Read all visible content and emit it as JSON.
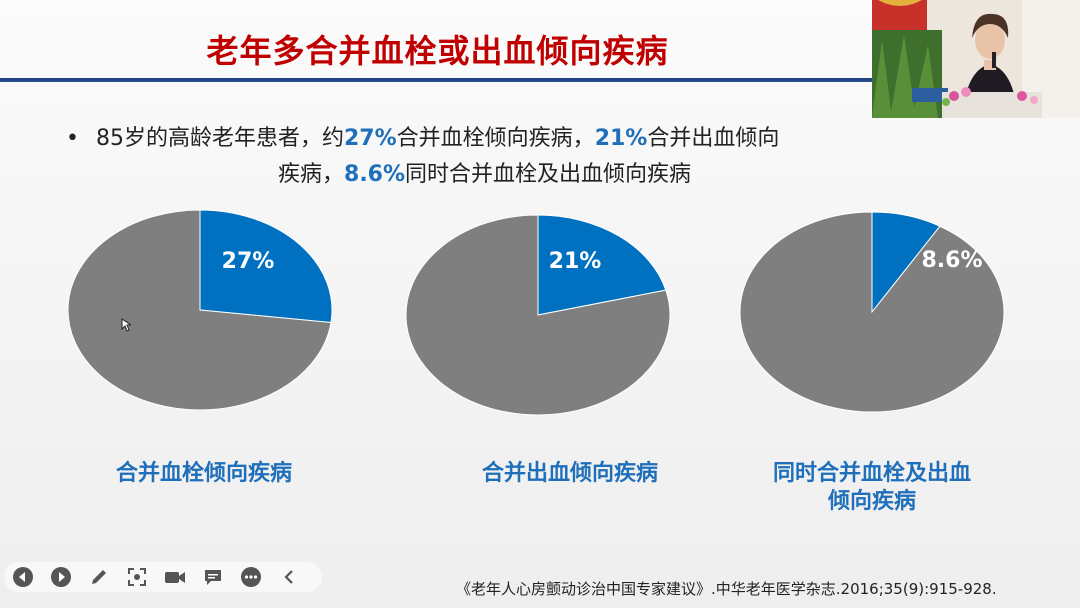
{
  "slide": {
    "title": "老年多合并血栓或出血倾向疾病",
    "bullet": {
      "dot": "•",
      "p1": "85岁的高龄老年患者，约",
      "v1": "27%",
      "p2": "合并血栓倾向疾病，",
      "v2": "21%",
      "p3": "合并出血倾向",
      "p4": "疾病，",
      "v3": "8.6%",
      "p5": "同时合并血栓及出血倾向疾病"
    },
    "citation": "《老年人心房颤动诊治中国专家建议》.中华老年医学杂志.2016;35(9):915-928."
  },
  "chart_data": [
    {
      "type": "pie",
      "slices": [
        {
          "label": "27%",
          "value": 27
        },
        {
          "label": "",
          "value": 73
        }
      ],
      "caption": "合并血栓倾向疾病"
    },
    {
      "type": "pie",
      "slices": [
        {
          "label": "21%",
          "value": 21
        },
        {
          "label": "",
          "value": 79
        }
      ],
      "caption": "合并出血倾向疾病"
    },
    {
      "type": "pie",
      "slices": [
        {
          "label": "8.6%",
          "value": 8.6
        },
        {
          "label": "",
          "value": 91.4
        }
      ],
      "caption_line1": "同时合并血栓及出血",
      "caption_line2": "倾向疾病"
    }
  ],
  "colors": {
    "highlight": "#0070c0",
    "rest": "#7f7f7f",
    "title": "#c00000"
  },
  "toolbar": {
    "icons": [
      "previous-icon",
      "play-icon",
      "pen-icon",
      "screenshot-icon",
      "camera-icon",
      "comment-icon",
      "more-icon",
      "collapse-icon"
    ]
  }
}
